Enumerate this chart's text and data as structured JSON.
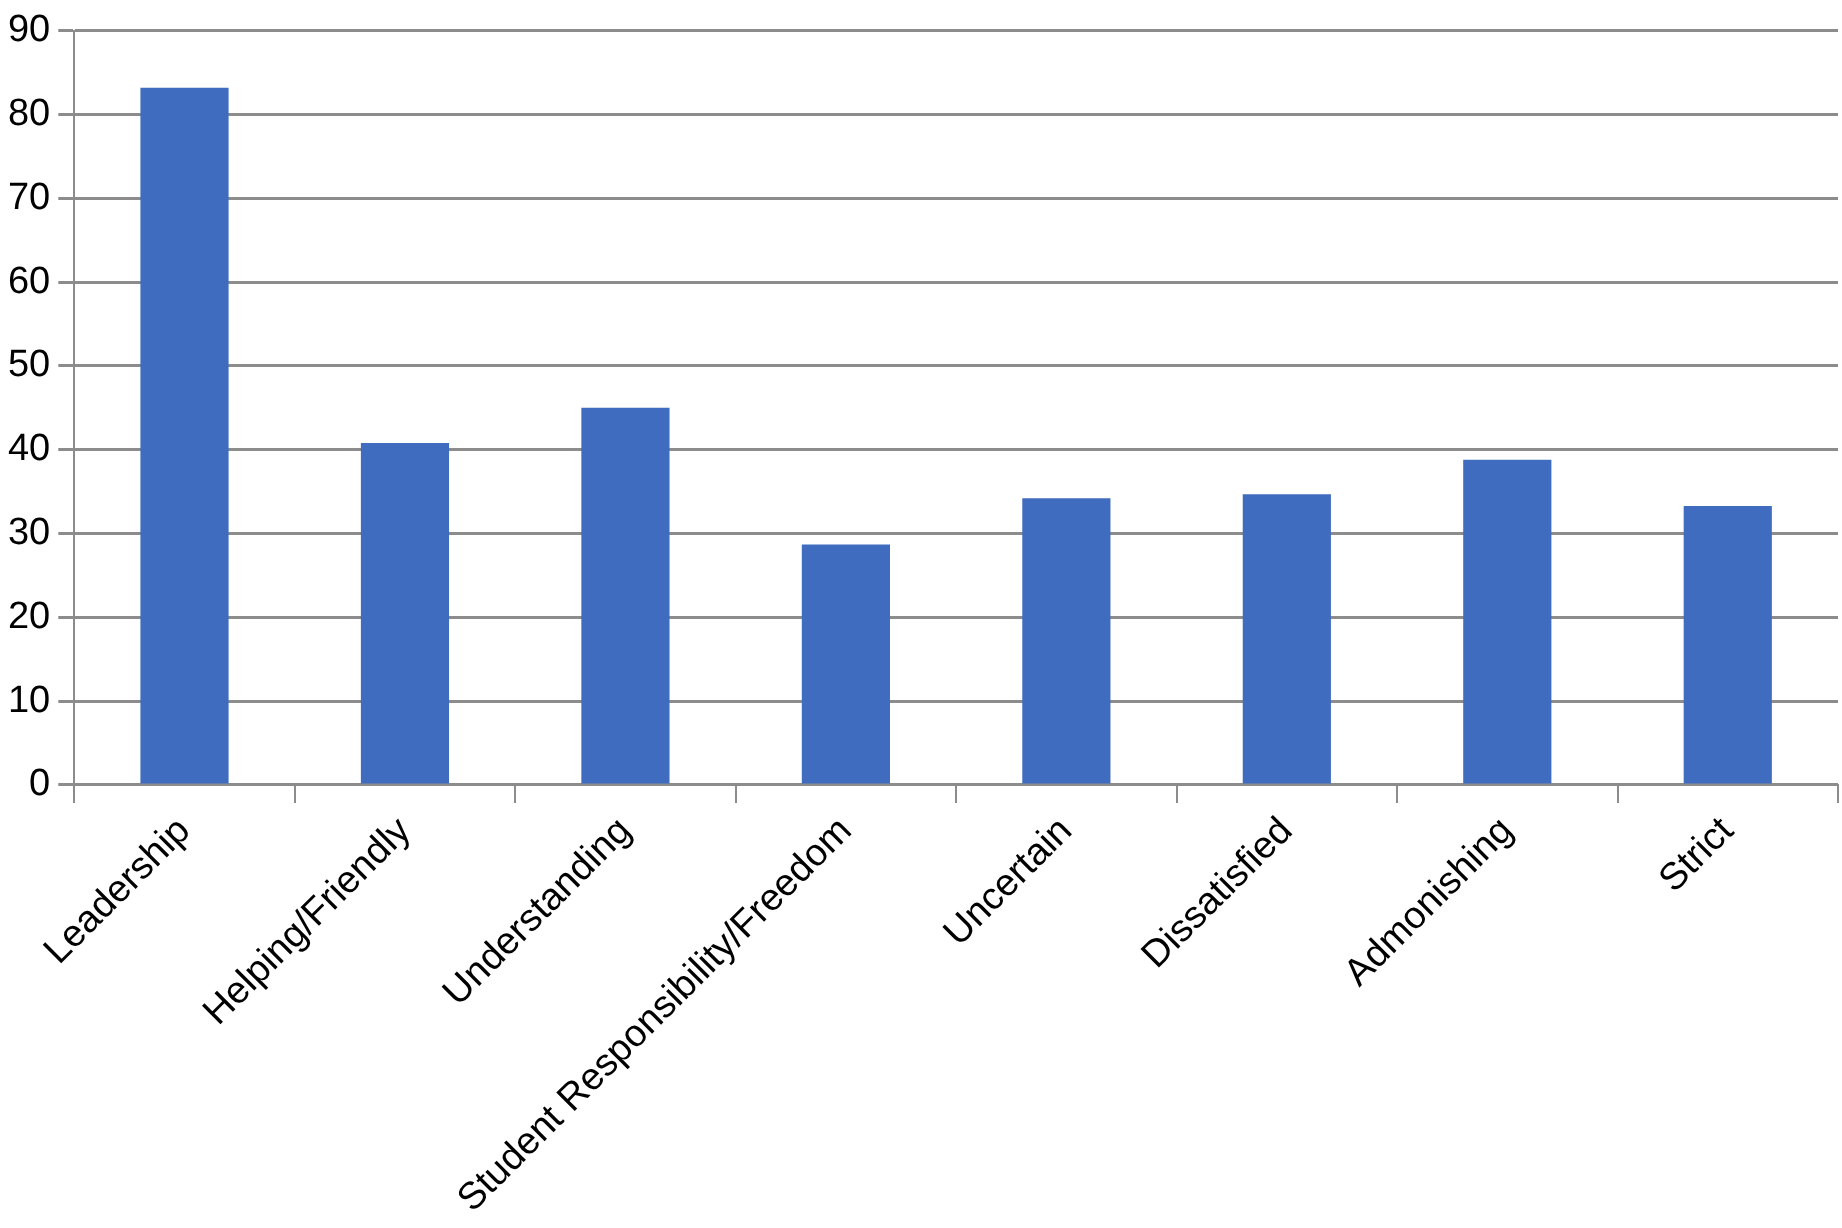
{
  "chart_data": {
    "type": "bar",
    "categories": [
      "Leadership",
      "Helping/Friendly",
      "Understanding",
      "Student Responsibility/Freedom",
      "Uncertain",
      "Dissatisfied",
      "Admonishing",
      "Strict"
    ],
    "values": [
      83.2,
      40.8,
      45,
      28.7,
      34.2,
      34.7,
      38.8,
      33.3
    ],
    "color": "#3f6cbf",
    "ylim": [
      0,
      90
    ],
    "yticks": [
      0,
      10,
      20,
      30,
      40,
      50,
      60,
      70,
      80,
      90
    ],
    "grid": "y",
    "legend": false
  }
}
